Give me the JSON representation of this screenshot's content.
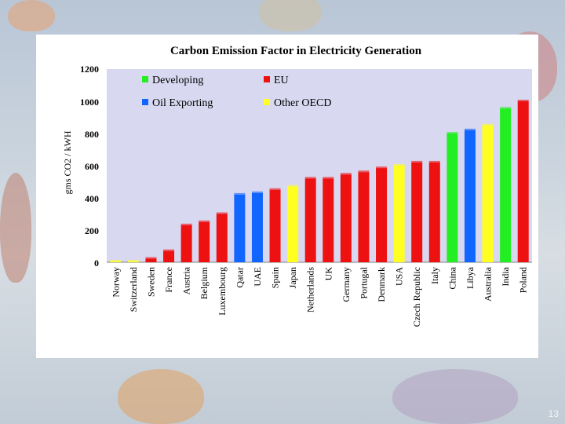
{
  "slide": {
    "number": "13"
  },
  "chart_data": {
    "type": "bar",
    "title": "Carbon Emission Factor in Electricity Generation",
    "xlabel": "",
    "ylabel": "gms CO2 / kWH",
    "ylim": [
      0,
      1200
    ],
    "yticks": [
      0,
      200,
      400,
      600,
      800,
      1000,
      1200
    ],
    "grid": false,
    "legend_position": "top-left inside plot",
    "legend": [
      {
        "name": "Developing",
        "color": "#22ee22"
      },
      {
        "name": "EU",
        "color": "#ee1111"
      },
      {
        "name": "Oil Exporting",
        "color": "#1166ff"
      },
      {
        "name": "Other OECD",
        "color": "#ffff22"
      }
    ],
    "categories": [
      "Norway",
      "Switzerland",
      "Sweden",
      "France",
      "Austria",
      "Belgium",
      "Luxembourg",
      "Qatar",
      "UAE",
      "Spain",
      "Japan",
      "Netherlands",
      "UK",
      "Germany",
      "Portugal",
      "Denmark",
      "USA",
      "Czech Republic",
      "Italy",
      "China",
      "Libya",
      "Australia",
      "India",
      "Poland"
    ],
    "values": [
      2,
      5,
      22,
      70,
      230,
      250,
      300,
      420,
      430,
      450,
      470,
      520,
      520,
      545,
      560,
      585,
      600,
      620,
      620,
      800,
      820,
      850,
      955,
      1000
    ],
    "groups": [
      "Other OECD",
      "Other OECD",
      "EU",
      "EU",
      "EU",
      "EU",
      "EU",
      "Oil Exporting",
      "Oil Exporting",
      "EU",
      "Other OECD",
      "EU",
      "EU",
      "EU",
      "EU",
      "EU",
      "Other OECD",
      "EU",
      "EU",
      "Developing",
      "Oil Exporting",
      "Other OECD",
      "Developing",
      "EU"
    ],
    "plot_background": "#d8d8f0"
  }
}
